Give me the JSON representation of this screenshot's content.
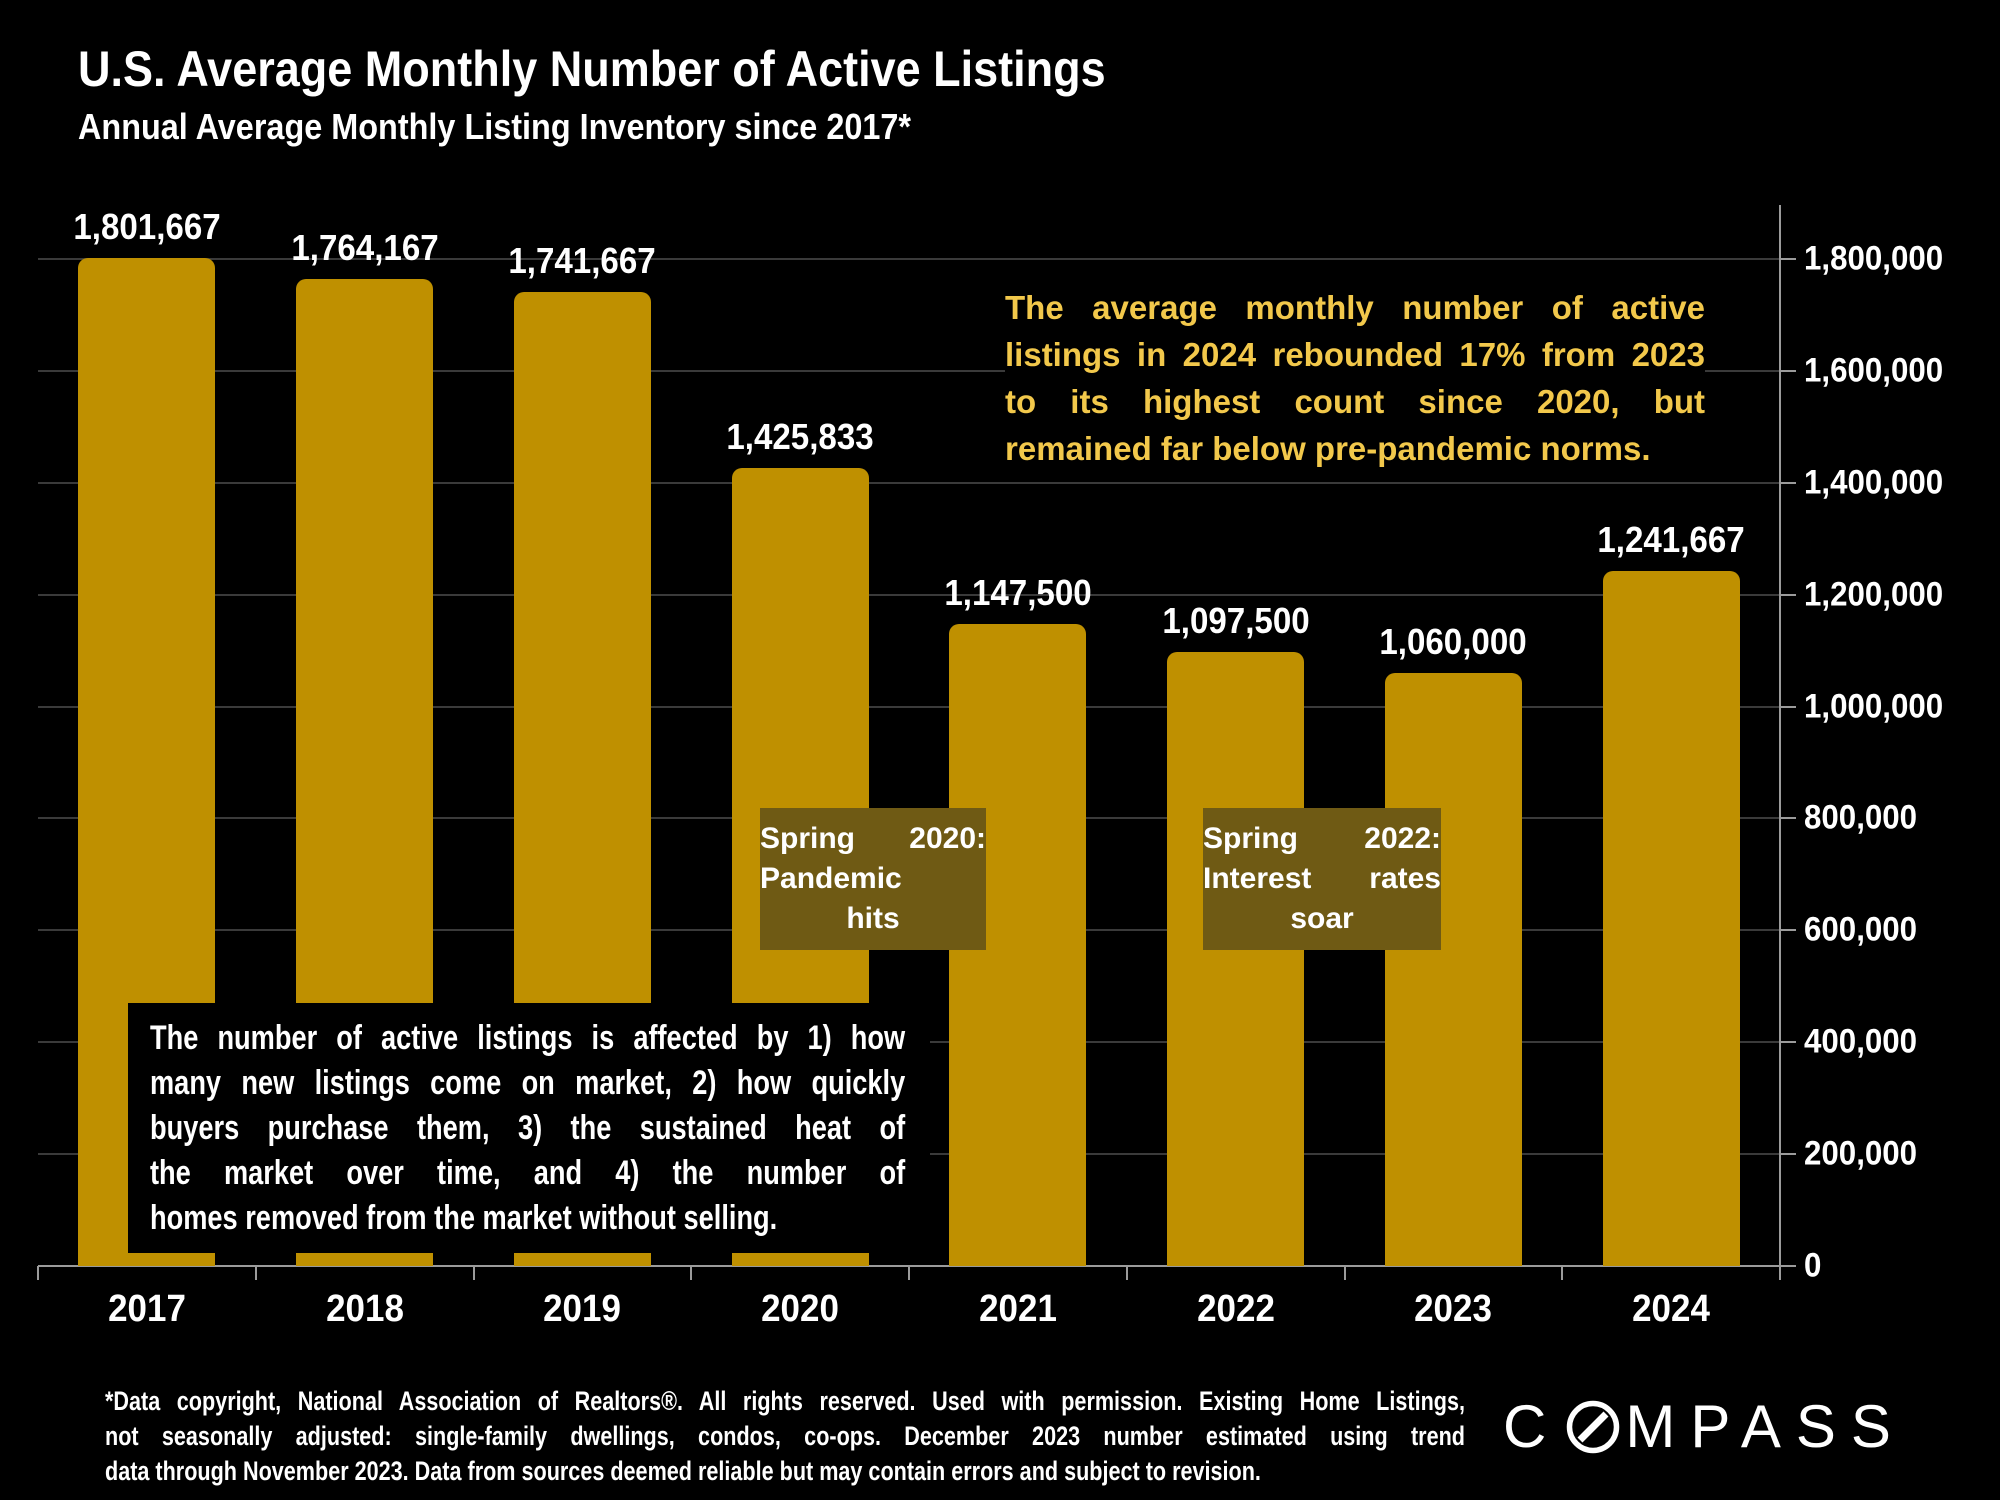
{
  "title": "U.S. Average Monthly Number of Active Listings",
  "subtitle": "Annual Average Monthly Listing Inventory since 2017*",
  "colors": {
    "background": "#000000",
    "bar": "#BF9000",
    "gold_text": "#F2C84B",
    "annotation_box": "#6F5A14",
    "grid_line": "#3A3A3A",
    "axis_line": "#9B9B9B",
    "text": "#FFFFFF"
  },
  "chart_data": {
    "type": "bar",
    "title": "U.S. Average Monthly Number of Active Listings",
    "subtitle": "Annual Average Monthly Listing Inventory since 2017*",
    "categories": [
      "2017",
      "2018",
      "2019",
      "2020",
      "2021",
      "2022",
      "2023",
      "2024"
    ],
    "values": [
      1801667,
      1764167,
      1741667,
      1425833,
      1147500,
      1097500,
      1060000,
      1241667
    ],
    "value_labels": [
      "1,801,667",
      "1,764,167",
      "1,741,667",
      "1,425,833",
      "1,147,500",
      "1,097,500",
      "1,060,000",
      "1,241,667"
    ],
    "bar_color": "#BF9000",
    "grid": true,
    "legend": "none",
    "y_axis": {
      "side": "right",
      "ylim": [
        0,
        1900000
      ],
      "ticks": [
        {
          "value": 1800000,
          "label": "1,800,000"
        },
        {
          "value": 1600000,
          "label": "1,600,000"
        },
        {
          "value": 1400000,
          "label": "1,400,000"
        },
        {
          "value": 1200000,
          "label": "1,200,000"
        },
        {
          "value": 1000000,
          "label": "1,000,000"
        },
        {
          "value": 800000,
          "label": "800,000"
        },
        {
          "value": 600000,
          "label": "600,000"
        },
        {
          "value": 400000,
          "label": "400,000"
        },
        {
          "value": 200000,
          "label": "200,000"
        },
        {
          "value": 0,
          "label": "0"
        }
      ]
    }
  },
  "annotations": {
    "gold_note": {
      "lines": [
        "The average monthly number of active",
        "listings in 2024 rebounded 17% from 2023",
        "to its highest count since 2020, but",
        "remained far below pre-pandemic norms."
      ]
    },
    "spring_2020": {
      "lines": [
        "Spring 2020:",
        "Pandemic",
        "hits"
      ]
    },
    "spring_2022": {
      "lines": [
        "Spring 2022:",
        "Interest rates",
        "soar"
      ]
    },
    "listings_note": {
      "lines": [
        "The number of active listings is affected by 1) how",
        "many new listings come on market, 2) how quickly",
        "buyers purchase them, 3) the sustained heat of",
        "the market over time, and 4) the number of",
        "homes removed from the market without selling."
      ]
    }
  },
  "footer": {
    "lines": [
      "*Data copyright, National Association of Realtors®. All rights reserved. Used with permission. Existing Home Listings,",
      "not seasonally adjusted:  single-family dwellings, condos, co-ops. December 2023 number estimated using trend",
      "data through November 2023. Data from sources deemed reliable but may contain errors and subject to revision."
    ]
  },
  "logo": {
    "prefix": "C",
    "suffix": "MPASS",
    "name": "COMPASS"
  }
}
